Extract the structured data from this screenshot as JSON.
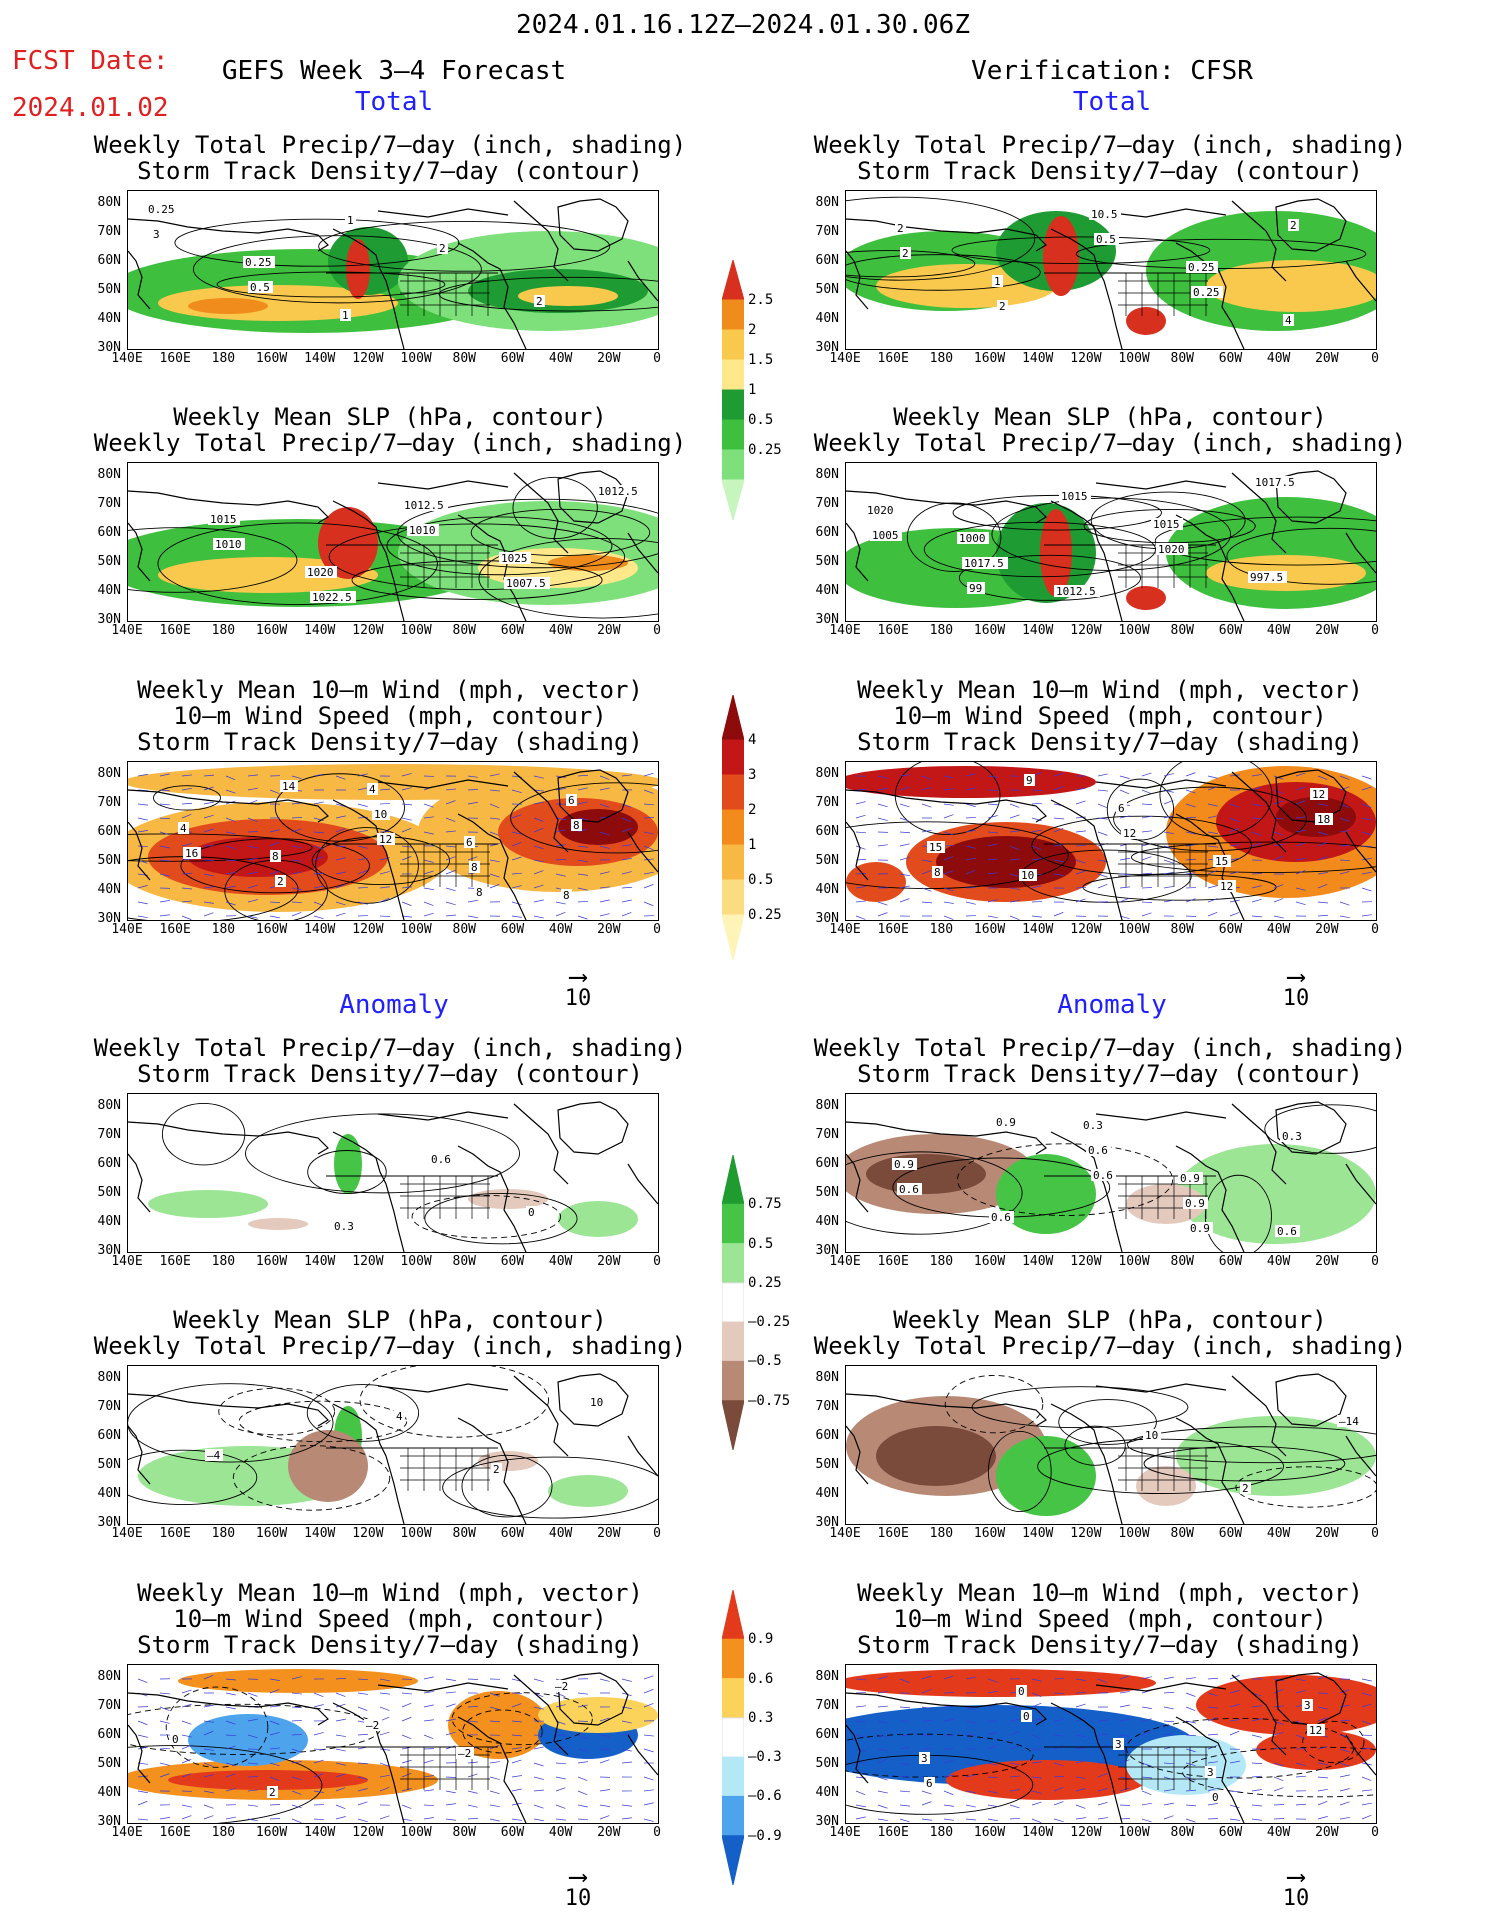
{
  "header": {
    "date_range": "2024.01.16.12Z—2024.01.30.06Z",
    "fcst_label": "FCST Date:",
    "fcst_date": "2024.01.02",
    "left_title": "GEFS Week 3—4 Forecast",
    "right_title": "Verification: CFSR"
  },
  "sections": {
    "total": "Total",
    "anomaly": "Anomaly"
  },
  "axes": {
    "lat": [
      "80N",
      "70N",
      "60N",
      "50N",
      "40N",
      "30N"
    ],
    "lon": [
      "140E",
      "160E",
      "180",
      "160W",
      "140W",
      "120W",
      "100W",
      "80W",
      "60W",
      "40W",
      "20W",
      "0"
    ]
  },
  "panels": [
    {
      "id": "p1",
      "col": "left",
      "section": "total",
      "type": "precip",
      "title1": "Weekly Total Precip/7—day (inch, shading)",
      "title2": "Storm Track Density/7—day (contour)",
      "labels": [
        "0.25",
        "0.25",
        "1",
        "2",
        "2",
        "3",
        "0.5",
        "1"
      ]
    },
    {
      "id": "p2",
      "col": "right",
      "section": "total",
      "type": "precip",
      "title1": "Weekly Total Precip/7—day (inch, shading)",
      "title2": "Storm Track Density/7—day (contour)",
      "labels": [
        "2",
        "1",
        "10.5",
        "0.25",
        "4",
        "2",
        "2",
        "0.5",
        "0.25",
        "2"
      ]
    },
    {
      "id": "p3",
      "col": "left",
      "section": "total",
      "type": "slp",
      "title1": "Weekly Mean SLP (hPa, contour)",
      "title2": "Weekly Total Precip/7—day (inch, shading)",
      "labels": [
        "1015",
        "1020",
        "1012.5",
        "1025",
        "1012.5",
        "1010",
        "1022.5",
        "1010",
        "1007.5"
      ]
    },
    {
      "id": "p4",
      "col": "right",
      "section": "total",
      "type": "slp",
      "title1": "Weekly Mean SLP (hPa, contour)",
      "title2": "Weekly Total Precip/7—day (inch, shading)",
      "labels": [
        "1000",
        "1012.5",
        "1015",
        "997.5",
        "1020",
        "1017.5",
        "1015",
        "1020",
        "1017.5",
        "1005",
        "99"
      ]
    },
    {
      "id": "p5",
      "col": "left",
      "section": "total",
      "type": "wind",
      "title1": "Weekly Mean 10—m Wind (mph, vector)",
      "title2": "10—m Wind Speed (mph, contour)",
      "title3": "Storm Track Density/7—day (shading)",
      "labels": [
        "8",
        "4",
        "6",
        "8",
        "4",
        "2",
        "10",
        "8",
        "6",
        "16",
        "14",
        "12",
        "8",
        "8"
      ]
    },
    {
      "id": "p6",
      "col": "right",
      "section": "total",
      "type": "wind",
      "title1": "Weekly Mean 10—m Wind (mph, vector)",
      "title2": "10—m Wind Speed (mph, contour)",
      "title3": "Storm Track Density/7—day (shading)",
      "labels": [
        "10",
        "6",
        "15",
        "12",
        "15",
        "9",
        "12",
        "12",
        "18",
        "8"
      ]
    },
    {
      "id": "p7",
      "col": "left",
      "section": "anomaly",
      "type": "aprecip",
      "title1": "Weekly Total Precip/7—day (inch, shading)",
      "title2": "Storm Track Density/7—day (contour)",
      "labels": [
        "0.3",
        "0.6",
        "0"
      ]
    },
    {
      "id": "p8",
      "col": "right",
      "section": "anomaly",
      "type": "aprecip",
      "title1": "Weekly Total Precip/7—day (inch, shading)",
      "title2": "Storm Track Density/7—day (contour)",
      "labels": [
        "0.3",
        "0.9",
        "0.6",
        "0.9",
        "0.6",
        "0.6",
        "0.9",
        "0.3",
        "0.6",
        "0.9",
        "0.6",
        "0.9"
      ]
    },
    {
      "id": "p9",
      "col": "left",
      "section": "anomaly",
      "type": "aslp",
      "title1": "Weekly Mean SLP (hPa, contour)",
      "title2": "Weekly Total Precip/7—day (inch, shading)",
      "labels": [
        "4",
        "2",
        "10",
        "—4"
      ]
    },
    {
      "id": "p10",
      "col": "right",
      "section": "anomaly",
      "type": "aslp",
      "title1": "Weekly Mean SLP (hPa, contour)",
      "title2": "Weekly Total Precip/7—day (inch, shading)",
      "labels": [
        "10",
        "2",
        "—14"
      ]
    },
    {
      "id": "p11",
      "col": "left",
      "section": "anomaly",
      "type": "awind",
      "title1": "Weekly Mean 10—m Wind (mph, vector)",
      "title2": "10—m Wind Speed (mph, contour)",
      "title3": "Storm Track Density/7—day (shading)",
      "labels": [
        "—2",
        "—2",
        "0",
        "2",
        "–2"
      ]
    },
    {
      "id": "p12",
      "col": "right",
      "section": "anomaly",
      "type": "awind",
      "title1": "Weekly Mean 10—m Wind (mph, vector)",
      "title2": "10—m Wind Speed (mph, contour)",
      "title3": "Storm Track Density/7—day (shading)",
      "labels": [
        "3",
        "3",
        "3",
        "0",
        "3",
        "0",
        "12",
        "6",
        "0"
      ]
    }
  ],
  "colorbars": {
    "precip": {
      "labels": [
        "2.5",
        "2",
        "1.5",
        "1",
        "0.5",
        "0.25"
      ],
      "colors": [
        "#d7301f",
        "#f08c1c",
        "#f8c94c",
        "#ffe88a",
        "#1e9b32",
        "#3ebf3e",
        "#7ee07a",
        "#c6f5be"
      ]
    },
    "track": {
      "labels": [
        "4",
        "3",
        "2",
        "1",
        "0.5",
        "0.25"
      ],
      "colors": [
        "#8e0b0b",
        "#c31616",
        "#e24b1c",
        "#f38a1c",
        "#f7b844",
        "#fcdc80",
        "#fff4b8"
      ]
    },
    "aprecip": {
      "labels": [
        "0.75",
        "0.5",
        "0.25",
        "—0.25",
        "—0.5",
        "—0.75"
      ],
      "colors": [
        "#1f9b2f",
        "#45c445",
        "#9be595",
        "#ffffff",
        "#e4c9bd",
        "#b88a76",
        "#7a4a3a"
      ]
    },
    "atrack": {
      "labels": [
        "0.9",
        "0.6",
        "0.3",
        "—0.3",
        "—0.6",
        "—0.9"
      ],
      "colors": [
        "#e43a1c",
        "#f3901e",
        "#fbd35a",
        "#ffffff",
        "#b5e8f6",
        "#4da3ec",
        "#1560c8"
      ]
    }
  },
  "vector_ref": "10"
}
